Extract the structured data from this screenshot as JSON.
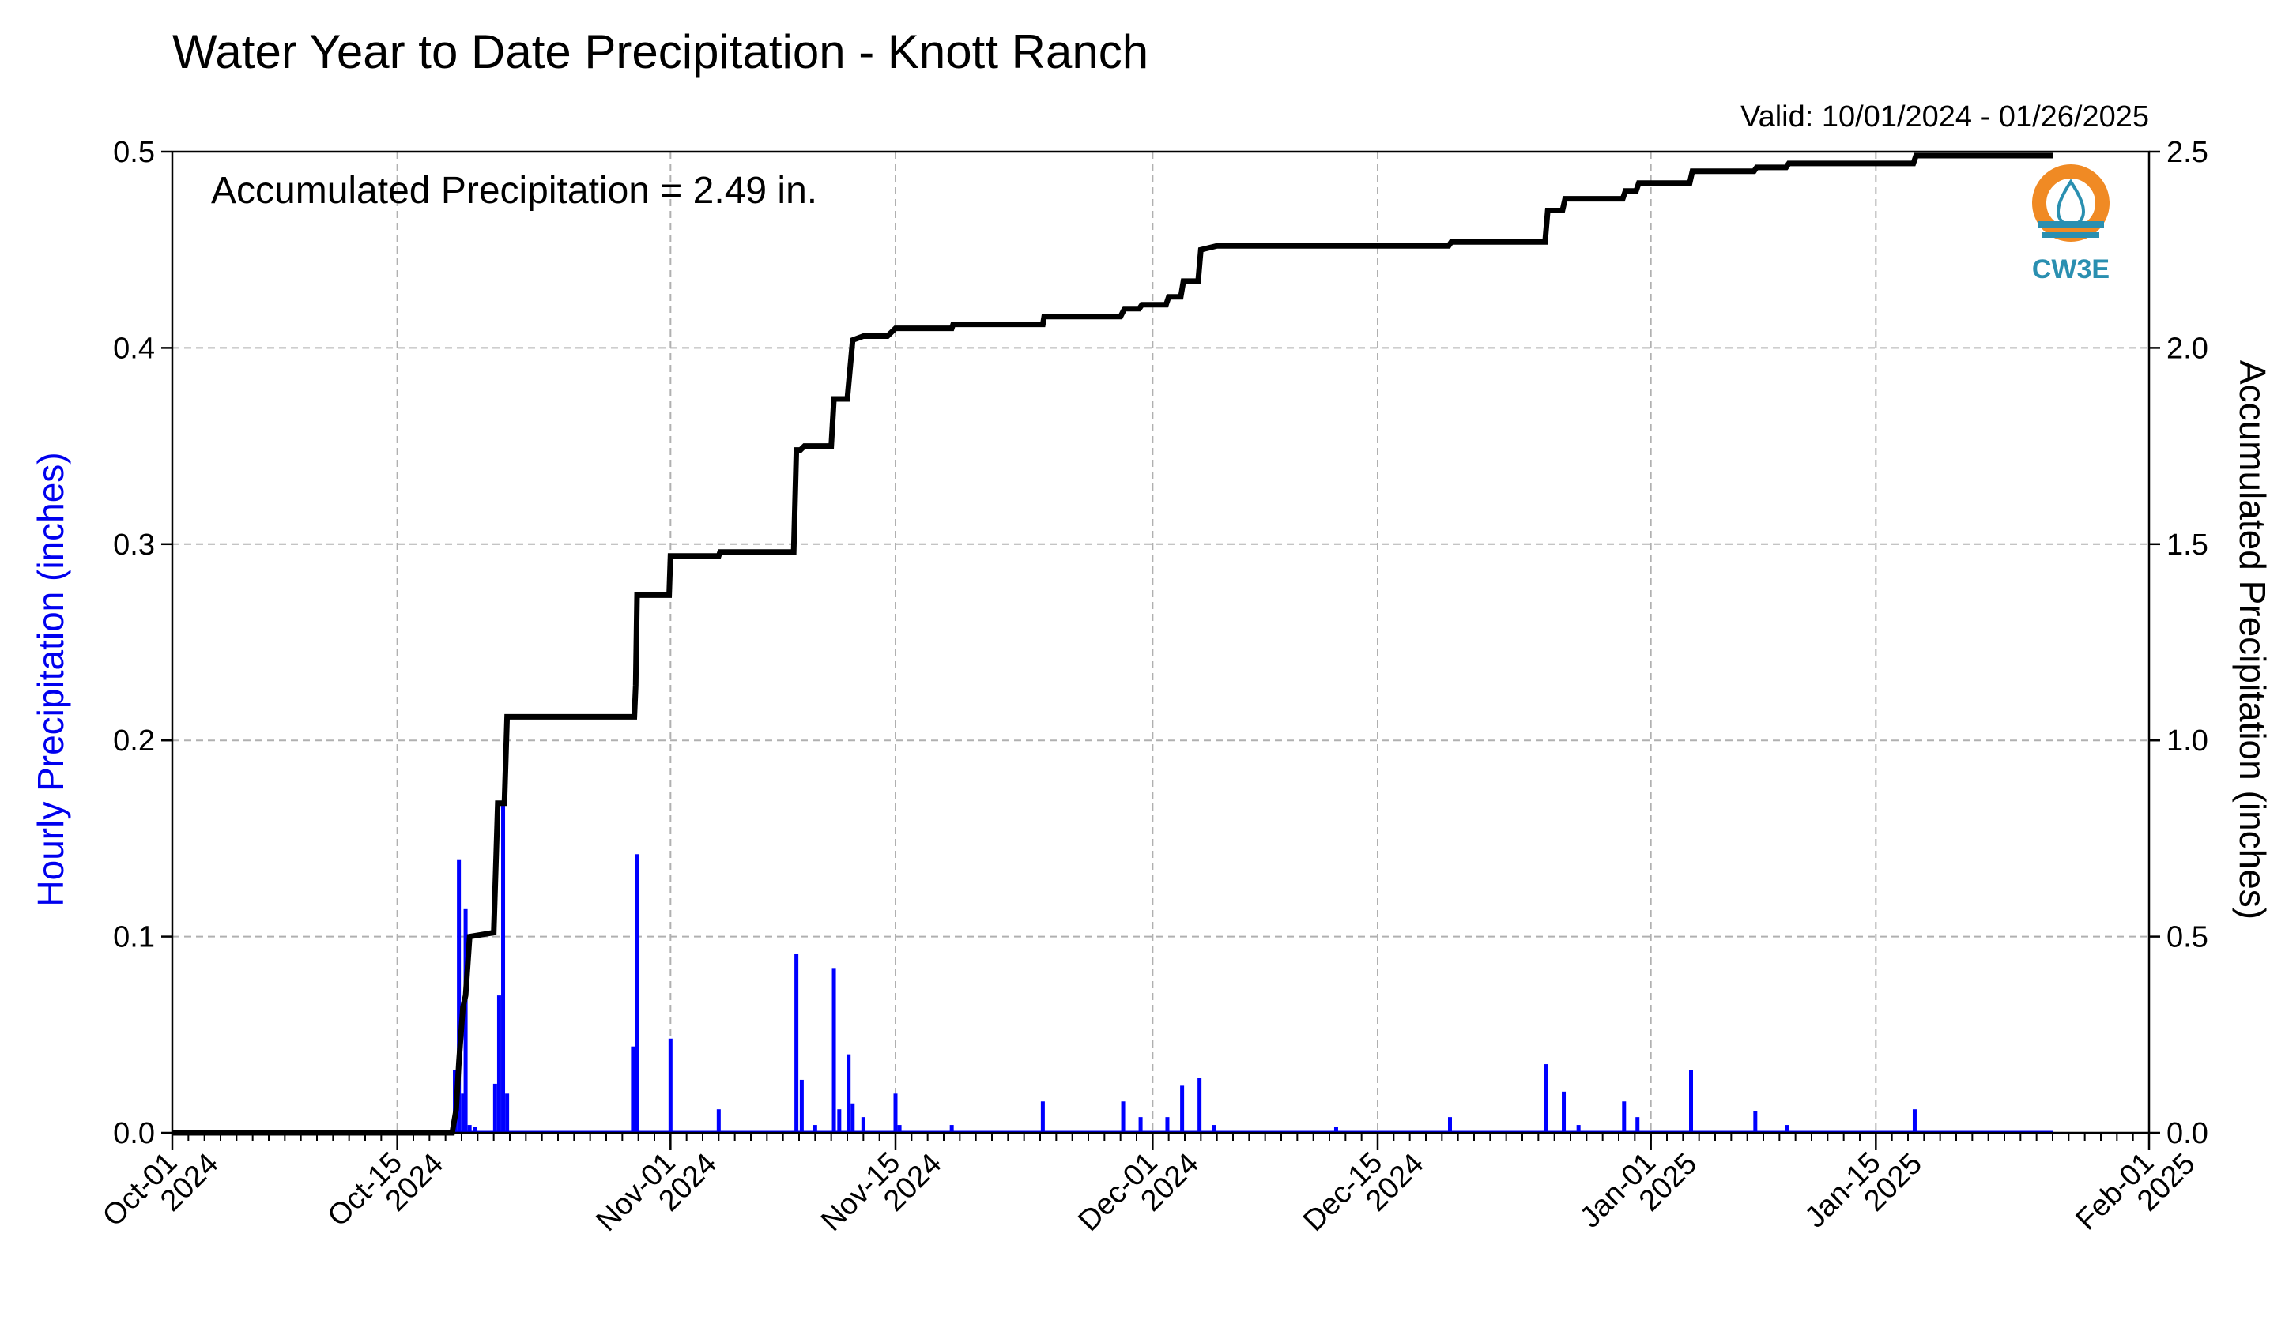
{
  "chart_data": {
    "type": "bar+line",
    "title": "Water Year to Date Precipitation - Knott Ranch",
    "subtitle": "Valid: 10/01/2024 - 01/26/2025",
    "annotation": "Accumulated Precipitation = 2.49 in.",
    "y_left_label": "Hourly Precipitation (inches)",
    "y_right_label": "Accumulated Precipitation (inches)",
    "y_left_label_color": "#0000ee",
    "bar_color": "#0000ff",
    "line_color": "#000000",
    "grid": true,
    "x_range": [
      "2024-10-01",
      "2025-02-01"
    ],
    "y_left_range": [
      0,
      0.5
    ],
    "y_right_range": [
      0,
      2.5
    ],
    "x_ticks": [
      {
        "date": "2024-10-01",
        "label1": "Oct-01",
        "label2": "2024"
      },
      {
        "date": "2024-10-15",
        "label1": "Oct-15",
        "label2": "2024"
      },
      {
        "date": "2024-11-01",
        "label1": "Nov-01",
        "label2": "2024"
      },
      {
        "date": "2024-11-15",
        "label1": "Nov-15",
        "label2": "2024"
      },
      {
        "date": "2024-12-01",
        "label1": "Dec-01",
        "label2": "2024"
      },
      {
        "date": "2024-12-15",
        "label1": "Dec-15",
        "label2": "2024"
      },
      {
        "date": "2025-01-01",
        "label1": "Jan-01",
        "label2": "2025"
      },
      {
        "date": "2025-01-15",
        "label1": "Jan-15",
        "label2": "2025"
      },
      {
        "date": "2025-02-01",
        "label1": "Feb-01",
        "label2": "2025"
      }
    ],
    "y_left_ticks": [
      "0.0",
      "0.1",
      "0.2",
      "0.3",
      "0.4",
      "0.5"
    ],
    "y_right_ticks": [
      "0.0",
      "0.5",
      "1.0",
      "1.5",
      "2.0",
      "2.5"
    ],
    "hourly_precip": [
      {
        "date": "2024-10-18 14:00",
        "value": 0.032
      },
      {
        "date": "2024-10-18 20:00",
        "value": 0.139
      },
      {
        "date": "2024-10-19 02:00",
        "value": 0.02
      },
      {
        "date": "2024-10-19 06:00",
        "value": 0.114
      },
      {
        "date": "2024-10-19 12:00",
        "value": 0.004
      },
      {
        "date": "2024-10-19 20:00",
        "value": 0.003
      },
      {
        "date": "2024-10-21 02:00",
        "value": 0.025
      },
      {
        "date": "2024-10-21 08:00",
        "value": 0.07
      },
      {
        "date": "2024-10-21 14:00",
        "value": 0.168
      },
      {
        "date": "2024-10-21 20:00",
        "value": 0.02
      },
      {
        "date": "2024-10-29 16:00",
        "value": 0.044
      },
      {
        "date": "2024-10-29 22:00",
        "value": 0.142
      },
      {
        "date": "2024-11-01 00:00",
        "value": 0.048
      },
      {
        "date": "2024-11-04 00:00",
        "value": 0.012
      },
      {
        "date": "2024-11-08 20:00",
        "value": 0.091
      },
      {
        "date": "2024-11-09 04:00",
        "value": 0.027
      },
      {
        "date": "2024-11-10 00:00",
        "value": 0.004
      },
      {
        "date": "2024-11-11 04:00",
        "value": 0.084
      },
      {
        "date": "2024-11-11 12:00",
        "value": 0.012
      },
      {
        "date": "2024-11-12 02:00",
        "value": 0.04
      },
      {
        "date": "2024-11-12 08:00",
        "value": 0.015
      },
      {
        "date": "2024-11-13 00:00",
        "value": 0.008
      },
      {
        "date": "2024-11-15 00:00",
        "value": 0.02
      },
      {
        "date": "2024-11-15 06:00",
        "value": 0.004
      },
      {
        "date": "2024-11-18 12:00",
        "value": 0.004
      },
      {
        "date": "2024-11-24 04:00",
        "value": 0.016
      },
      {
        "date": "2024-11-29 04:00",
        "value": 0.016
      },
      {
        "date": "2024-11-30 06:00",
        "value": 0.008
      },
      {
        "date": "2024-12-01 22:00",
        "value": 0.008
      },
      {
        "date": "2024-12-02 20:00",
        "value": 0.024
      },
      {
        "date": "2024-12-03 22:00",
        "value": 0.028
      },
      {
        "date": "2024-12-04 20:00",
        "value": 0.004
      },
      {
        "date": "2024-12-12 10:00",
        "value": 0.003
      },
      {
        "date": "2024-12-19 12:00",
        "value": 0.008
      },
      {
        "date": "2024-12-25 12:00",
        "value": 0.035
      },
      {
        "date": "2024-12-26 14:00",
        "value": 0.021
      },
      {
        "date": "2024-12-27 12:00",
        "value": 0.004
      },
      {
        "date": "2024-12-30 08:00",
        "value": 0.016
      },
      {
        "date": "2024-12-31 04:00",
        "value": 0.008
      },
      {
        "date": "2025-01-03 12:00",
        "value": 0.032
      },
      {
        "date": "2025-01-07 12:00",
        "value": 0.011
      },
      {
        "date": "2025-01-09 12:00",
        "value": 0.004
      },
      {
        "date": "2025-01-17 10:00",
        "value": 0.012
      }
    ],
    "accumulated_precip": [
      {
        "date": "2024-10-01 00:00",
        "value": 0.0
      },
      {
        "date": "2024-10-18 10:00",
        "value": 0.0
      },
      {
        "date": "2024-10-18 16:00",
        "value": 0.06
      },
      {
        "date": "2024-10-18 20:00",
        "value": 0.18
      },
      {
        "date": "2024-10-19 02:00",
        "value": 0.32
      },
      {
        "date": "2024-10-19 06:00",
        "value": 0.35
      },
      {
        "date": "2024-10-19 12:00",
        "value": 0.5
      },
      {
        "date": "2024-10-21 00:00",
        "value": 0.51
      },
      {
        "date": "2024-10-21 06:00",
        "value": 0.84
      },
      {
        "date": "2024-10-21 16:00",
        "value": 0.84
      },
      {
        "date": "2024-10-21 20:00",
        "value": 1.06
      },
      {
        "date": "2024-10-29 18:00",
        "value": 1.06
      },
      {
        "date": "2024-10-29 20:00",
        "value": 1.14
      },
      {
        "date": "2024-10-29 22:00",
        "value": 1.37
      },
      {
        "date": "2024-10-31 22:00",
        "value": 1.37
      },
      {
        "date": "2024-11-01 00:00",
        "value": 1.47
      },
      {
        "date": "2024-11-04 00:00",
        "value": 1.47
      },
      {
        "date": "2024-11-04 02:00",
        "value": 1.48
      },
      {
        "date": "2024-11-08 16:00",
        "value": 1.48
      },
      {
        "date": "2024-11-08 20:00",
        "value": 1.74
      },
      {
        "date": "2024-11-09 02:00",
        "value": 1.74
      },
      {
        "date": "2024-11-09 08:00",
        "value": 1.75
      },
      {
        "date": "2024-11-11 00:00",
        "value": 1.75
      },
      {
        "date": "2024-11-11 04:00",
        "value": 1.87
      },
      {
        "date": "2024-11-12 00:00",
        "value": 1.87
      },
      {
        "date": "2024-11-12 08:00",
        "value": 2.02
      },
      {
        "date": "2024-11-13 00:00",
        "value": 2.03
      },
      {
        "date": "2024-11-14 12:00",
        "value": 2.03
      },
      {
        "date": "2024-11-15 00:00",
        "value": 2.05
      },
      {
        "date": "2024-11-18 12:00",
        "value": 2.05
      },
      {
        "date": "2024-11-18 14:00",
        "value": 2.06
      },
      {
        "date": "2024-11-24 04:00",
        "value": 2.06
      },
      {
        "date": "2024-11-24 06:00",
        "value": 2.08
      },
      {
        "date": "2024-11-29 00:00",
        "value": 2.08
      },
      {
        "date": "2024-11-29 06:00",
        "value": 2.1
      },
      {
        "date": "2024-11-30 04:00",
        "value": 2.1
      },
      {
        "date": "2024-11-30 08:00",
        "value": 2.11
      },
      {
        "date": "2024-12-01 20:00",
        "value": 2.11
      },
      {
        "date": "2024-12-02 00:00",
        "value": 2.13
      },
      {
        "date": "2024-12-02 18:00",
        "value": 2.13
      },
      {
        "date": "2024-12-02 22:00",
        "value": 2.17
      },
      {
        "date": "2024-12-03 20:00",
        "value": 2.17
      },
      {
        "date": "2024-12-04 00:00",
        "value": 2.25
      },
      {
        "date": "2024-12-05 00:00",
        "value": 2.26
      },
      {
        "date": "2024-12-12 10:00",
        "value": 2.26
      },
      {
        "date": "2024-12-12 12:00",
        "value": 2.26
      },
      {
        "date": "2024-12-19 10:00",
        "value": 2.26
      },
      {
        "date": "2024-12-19 14:00",
        "value": 2.27
      },
      {
        "date": "2024-12-25 10:00",
        "value": 2.27
      },
      {
        "date": "2024-12-25 14:00",
        "value": 2.35
      },
      {
        "date": "2024-12-26 12:00",
        "value": 2.35
      },
      {
        "date": "2024-12-26 16:00",
        "value": 2.38
      },
      {
        "date": "2024-12-27 16:00",
        "value": 2.38
      },
      {
        "date": "2024-12-30 06:00",
        "value": 2.38
      },
      {
        "date": "2024-12-30 10:00",
        "value": 2.4
      },
      {
        "date": "2024-12-31 02:00",
        "value": 2.4
      },
      {
        "date": "2024-12-31 06:00",
        "value": 2.42
      },
      {
        "date": "2025-01-03 10:00",
        "value": 2.42
      },
      {
        "date": "2025-01-03 14:00",
        "value": 2.45
      },
      {
        "date": "2025-01-07 10:00",
        "value": 2.45
      },
      {
        "date": "2025-01-07 14:00",
        "value": 2.46
      },
      {
        "date": "2025-01-09 10:00",
        "value": 2.46
      },
      {
        "date": "2025-01-09 14:00",
        "value": 2.47
      },
      {
        "date": "2025-01-17 08:00",
        "value": 2.47
      },
      {
        "date": "2025-01-17 12:00",
        "value": 2.49
      },
      {
        "date": "2025-01-26 00:00",
        "value": 2.49
      }
    ]
  },
  "logo": {
    "text": "CW3E",
    "ring_color": "#f08a24",
    "wave_color": "#2a8fb0"
  }
}
